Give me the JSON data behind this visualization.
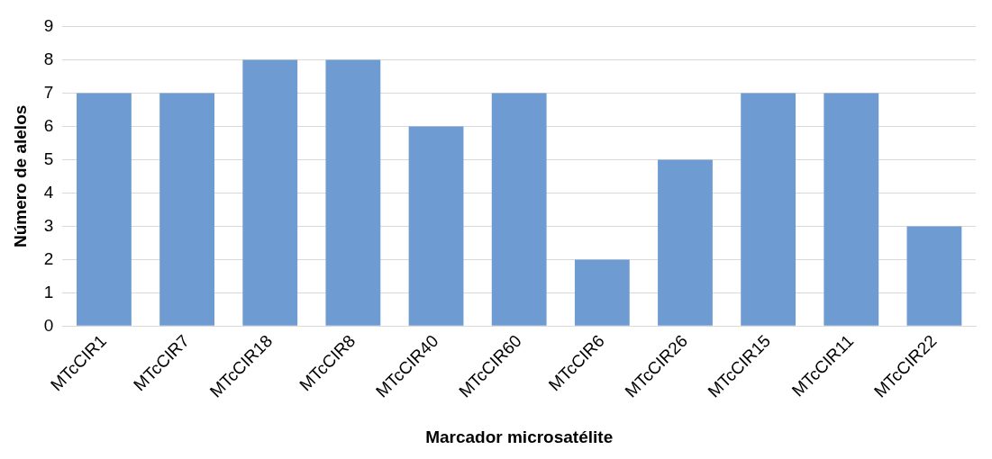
{
  "chart_data": {
    "type": "bar",
    "xlabel": "Marcador microsatélite",
    "ylabel": "Número de alelos",
    "categories": [
      "MTcCIR1",
      "MTcCIR7",
      "MTcCIR18",
      "MTcCIR8",
      "MTcCIR40",
      "MTcCIR60",
      "MTcCIR6",
      "MTcCIR26",
      "MTcCIR15",
      "MTcCIR11",
      "MTcCIR22"
    ],
    "values": [
      7,
      7,
      8,
      8,
      6,
      7,
      2,
      5,
      7,
      7,
      3
    ],
    "color": "#6f9bd3",
    "ylim": [
      0,
      9
    ],
    "yticks": [
      0,
      1,
      2,
      3,
      4,
      5,
      6,
      7,
      8,
      9
    ],
    "grid": "y",
    "legend": false
  }
}
